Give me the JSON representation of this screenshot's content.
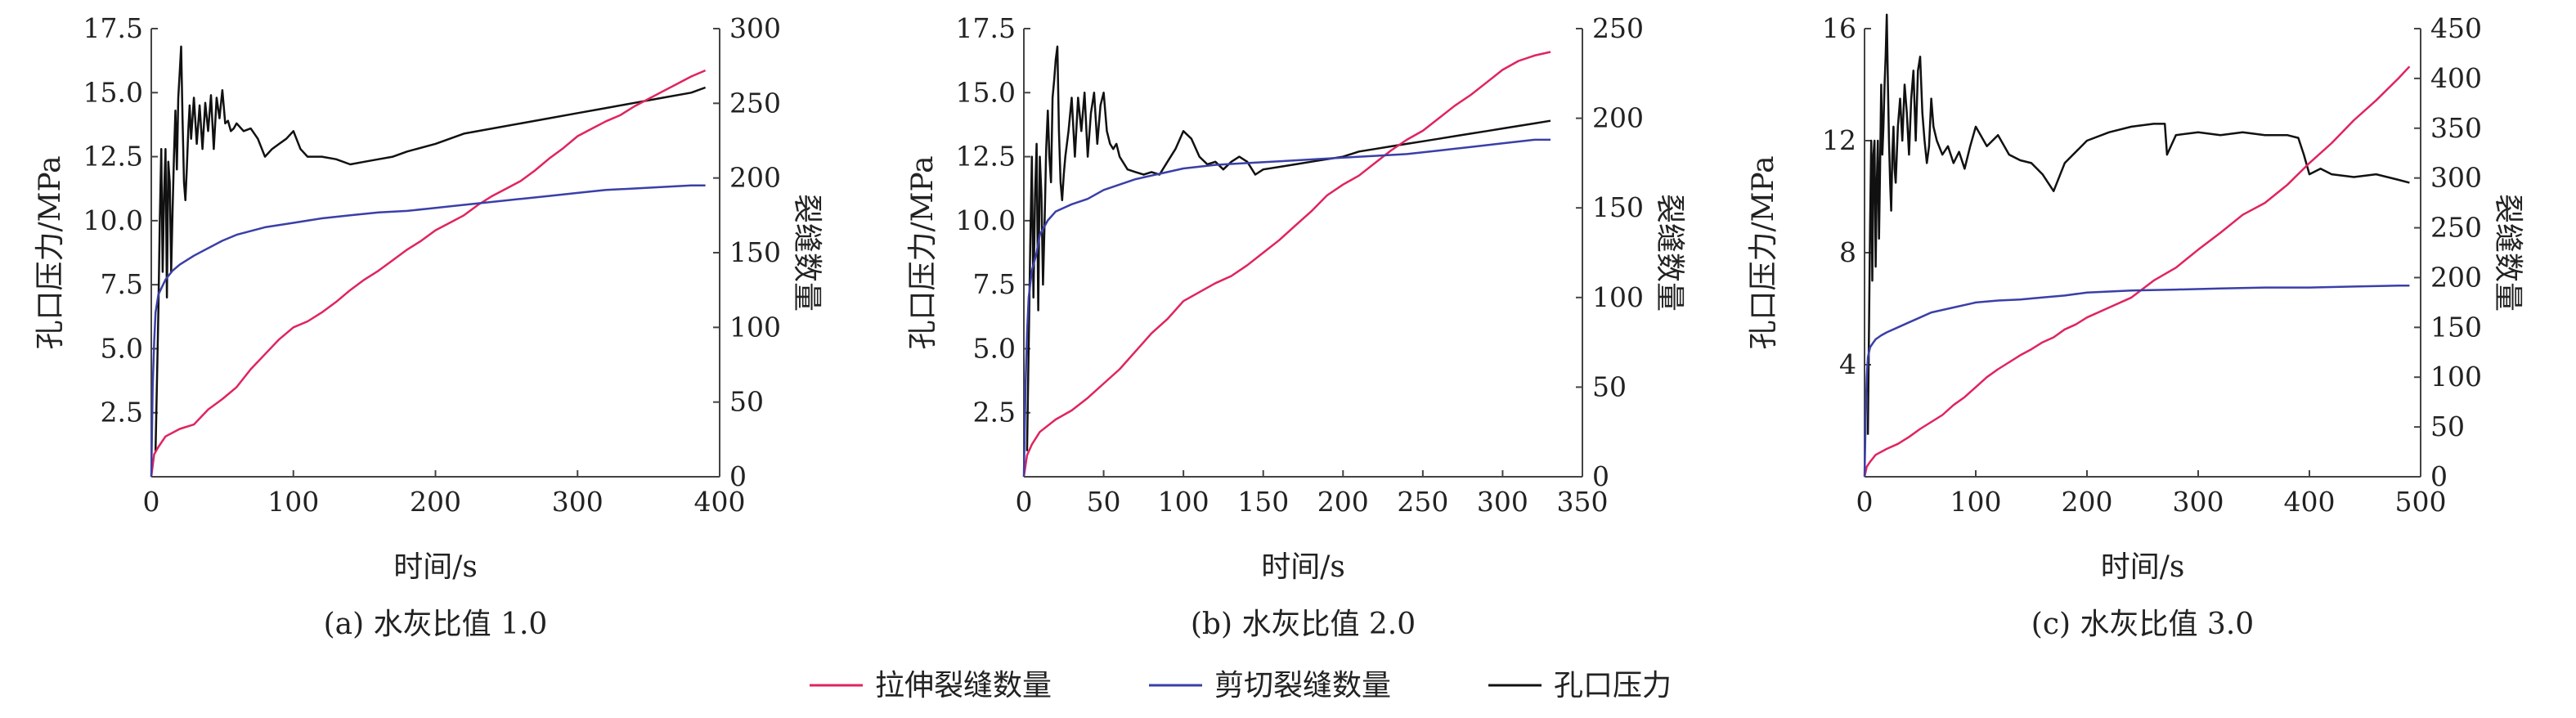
{
  "colors": {
    "tensile": "#e0245e",
    "shear": "#3a3fa8",
    "pressure": "#111111",
    "axis": "#444444"
  },
  "legend": {
    "tensile": "拉伸裂缝数量",
    "shear": "剪切裂缝数量",
    "pressure": "孔口压力"
  },
  "chart_data": [
    {
      "type": "line",
      "caption": "(a) 水灰比值 1.0",
      "xlabel": "时间/s",
      "ylabel": "孔口压力/MPa",
      "y2label": "裂缝数量",
      "xlim": [
        0,
        400
      ],
      "ylim": [
        0,
        17.5
      ],
      "y2lim": [
        0,
        300
      ],
      "xticks": [
        0,
        100,
        200,
        300,
        400
      ],
      "yticks": [
        2.5,
        5.0,
        7.5,
        10.0,
        12.5,
        15.0,
        17.5
      ],
      "y2ticks": [
        0,
        50,
        100,
        150,
        200,
        250,
        300
      ],
      "series": [
        {
          "name": "孔口压力",
          "axis": "left",
          "x": [
            3,
            5,
            6,
            7,
            8,
            9,
            10,
            11,
            12,
            13,
            14,
            15,
            16,
            17,
            18,
            19,
            20,
            21,
            22,
            23,
            24,
            25,
            26,
            27,
            28,
            30,
            32,
            34,
            36,
            38,
            40,
            42,
            44,
            46,
            48,
            50,
            52,
            54,
            56,
            58,
            60,
            65,
            70,
            75,
            80,
            85,
            90,
            95,
            100,
            105,
            110,
            120,
            130,
            140,
            150,
            160,
            170,
            180,
            200,
            220,
            240,
            260,
            280,
            300,
            320,
            340,
            360,
            380,
            390
          ],
          "y": [
            1.0,
            6.5,
            10.0,
            12.8,
            8.0,
            11.0,
            12.8,
            7.0,
            12.3,
            11.5,
            8.0,
            10.5,
            12.6,
            14.3,
            12.0,
            14.8,
            15.8,
            16.8,
            14.0,
            11.5,
            10.8,
            12.0,
            13.5,
            14.5,
            13.2,
            14.8,
            13.0,
            14.5,
            12.8,
            14.6,
            13.5,
            14.9,
            12.8,
            14.8,
            14.0,
            15.1,
            13.8,
            13.9,
            13.5,
            13.6,
            13.8,
            13.5,
            13.6,
            13.2,
            12.5,
            12.8,
            13.0,
            13.2,
            13.5,
            12.8,
            12.5,
            12.5,
            12.4,
            12.2,
            12.3,
            12.4,
            12.5,
            12.7,
            13.0,
            13.4,
            13.6,
            13.8,
            14.0,
            14.2,
            14.4,
            14.6,
            14.8,
            15.0,
            15.2
          ]
        },
        {
          "name": "拉伸裂缝数量",
          "axis": "right",
          "x": [
            0,
            2,
            5,
            10,
            20,
            30,
            40,
            50,
            60,
            70,
            80,
            90,
            100,
            110,
            120,
            130,
            140,
            150,
            160,
            170,
            180,
            190,
            200,
            210,
            220,
            230,
            240,
            250,
            260,
            270,
            280,
            290,
            300,
            310,
            320,
            330,
            340,
            350,
            360,
            370,
            380,
            390
          ],
          "y": [
            0,
            15,
            20,
            27,
            32,
            35,
            45,
            52,
            60,
            72,
            82,
            92,
            100,
            104,
            110,
            117,
            125,
            132,
            138,
            145,
            152,
            158,
            165,
            170,
            175,
            182,
            188,
            193,
            198,
            205,
            213,
            220,
            228,
            233,
            238,
            242,
            248,
            253,
            258,
            263,
            268,
            272
          ]
        },
        {
          "name": "剪切裂缝数量",
          "axis": "right",
          "x": [
            0,
            1,
            2,
            3,
            5,
            8,
            10,
            15,
            20,
            30,
            40,
            50,
            60,
            80,
            100,
            120,
            140,
            160,
            180,
            200,
            220,
            240,
            260,
            280,
            300,
            320,
            340,
            360,
            380,
            390
          ],
          "y": [
            0,
            60,
            90,
            110,
            122,
            128,
            132,
            138,
            142,
            148,
            153,
            158,
            162,
            167,
            170,
            173,
            175,
            177,
            178,
            180,
            182,
            184,
            186,
            188,
            190,
            192,
            193,
            194,
            195,
            195
          ]
        }
      ]
    },
    {
      "type": "line",
      "caption": "(b) 水灰比值 2.0",
      "xlabel": "时间/s",
      "ylabel": "孔口压力/MPa",
      "y2label": "裂缝数量",
      "xlim": [
        0,
        350
      ],
      "ylim": [
        0,
        17.5
      ],
      "y2lim": [
        0,
        250
      ],
      "xticks": [
        0,
        50,
        100,
        150,
        200,
        250,
        300,
        350
      ],
      "yticks": [
        2.5,
        5.0,
        7.5,
        10.0,
        12.5,
        15.0,
        17.5
      ],
      "y2ticks": [
        0,
        50,
        100,
        150,
        200,
        250
      ],
      "series": [
        {
          "name": "孔口压力",
          "axis": "left",
          "x": [
            2,
            4,
            5,
            6,
            7,
            8,
            9,
            10,
            11,
            12,
            13,
            14,
            15,
            16,
            17,
            18,
            19,
            20,
            21,
            22,
            23,
            24,
            25,
            26,
            28,
            30,
            32,
            34,
            36,
            38,
            40,
            42,
            44,
            46,
            48,
            50,
            52,
            54,
            56,
            58,
            60,
            65,
            70,
            75,
            80,
            85,
            90,
            95,
            100,
            105,
            110,
            115,
            120,
            125,
            130,
            135,
            140,
            145,
            150,
            160,
            170,
            180,
            190,
            200,
            210,
            220,
            230,
            240,
            250,
            260,
            270,
            280,
            290,
            300,
            310,
            320,
            330
          ],
          "y": [
            1.0,
            9.0,
            12.5,
            7.0,
            11.0,
            13.0,
            6.5,
            12.5,
            11.0,
            7.5,
            10.0,
            12.8,
            14.3,
            12.5,
            11.5,
            14.8,
            15.5,
            16.3,
            16.8,
            13.5,
            11.5,
            10.8,
            11.8,
            12.5,
            13.5,
            14.8,
            12.5,
            14.8,
            13.5,
            15.0,
            12.5,
            14.2,
            15.0,
            13.0,
            14.5,
            15.0,
            13.5,
            13.0,
            12.8,
            13.0,
            12.5,
            12.0,
            11.9,
            11.8,
            11.9,
            11.8,
            12.3,
            12.8,
            13.5,
            13.2,
            12.5,
            12.2,
            12.3,
            12.0,
            12.3,
            12.5,
            12.3,
            11.8,
            12.0,
            12.1,
            12.2,
            12.3,
            12.4,
            12.5,
            12.7,
            12.8,
            12.9,
            13.0,
            13.1,
            13.2,
            13.3,
            13.4,
            13.5,
            13.6,
            13.7,
            13.8,
            13.9
          ]
        },
        {
          "name": "拉伸裂缝数量",
          "axis": "right",
          "x": [
            0,
            2,
            5,
            10,
            20,
            30,
            40,
            50,
            60,
            70,
            80,
            90,
            100,
            110,
            120,
            130,
            140,
            150,
            160,
            170,
            180,
            190,
            200,
            210,
            220,
            230,
            240,
            250,
            260,
            270,
            280,
            290,
            300,
            310,
            320,
            330
          ],
          "y": [
            0,
            12,
            18,
            25,
            32,
            37,
            44,
            52,
            60,
            70,
            80,
            88,
            98,
            103,
            108,
            112,
            118,
            125,
            132,
            140,
            148,
            157,
            163,
            168,
            175,
            182,
            188,
            193,
            200,
            207,
            213,
            220,
            227,
            232,
            235,
            237
          ]
        },
        {
          "name": "剪切裂缝数量",
          "axis": "right",
          "x": [
            0,
            1,
            2,
            3,
            5,
            8,
            10,
            15,
            20,
            30,
            40,
            50,
            60,
            70,
            80,
            90,
            100,
            120,
            140,
            160,
            180,
            200,
            220,
            240,
            260,
            280,
            300,
            320,
            330
          ],
          "y": [
            0,
            50,
            80,
            100,
            115,
            125,
            135,
            143,
            148,
            152,
            155,
            160,
            163,
            166,
            168,
            170,
            172,
            174,
            175,
            176,
            177,
            178,
            179,
            180,
            182,
            184,
            186,
            188,
            188
          ]
        }
      ]
    },
    {
      "type": "line",
      "caption": "(c) 水灰比值 3.0",
      "xlabel": "时间/s",
      "ylabel": "孔口压力/MPa",
      "y2label": "裂缝数量",
      "xlim": [
        0,
        500
      ],
      "ylim": [
        0,
        16
      ],
      "y2lim": [
        0,
        450
      ],
      "xticks": [
        0,
        100,
        200,
        300,
        400,
        500
      ],
      "yticks": [
        4,
        8,
        12,
        16
      ],
      "y2ticks": [
        0,
        50,
        100,
        150,
        200,
        250,
        300,
        350,
        400,
        450
      ],
      "series": [
        {
          "name": "孔口压力",
          "axis": "left",
          "x": [
            3,
            5,
            6,
            7,
            8,
            9,
            10,
            11,
            12,
            13,
            14,
            15,
            16,
            17,
            18,
            19,
            20,
            21,
            22,
            23,
            24,
            25,
            26,
            27,
            28,
            30,
            32,
            34,
            36,
            38,
            40,
            42,
            44,
            46,
            48,
            50,
            52,
            54,
            56,
            58,
            60,
            62,
            65,
            70,
            75,
            80,
            85,
            90,
            95,
            100,
            110,
            120,
            130,
            140,
            150,
            160,
            170,
            180,
            200,
            220,
            240,
            260,
            270,
            272,
            280,
            300,
            320,
            340,
            360,
            380,
            390,
            395,
            400,
            410,
            420,
            440,
            460,
            480,
            490
          ],
          "y": [
            1.5,
            9.0,
            12.0,
            7.0,
            11.5,
            12.0,
            7.5,
            10.5,
            12.0,
            8.5,
            11.0,
            14.0,
            11.5,
            12.5,
            14.0,
            15.0,
            16.5,
            14.0,
            12.0,
            10.5,
            9.5,
            11.5,
            12.5,
            11.0,
            10.5,
            12.5,
            13.5,
            12.0,
            14.0,
            13.0,
            11.5,
            13.5,
            14.5,
            12.0,
            14.5,
            15.0,
            13.0,
            12.0,
            11.2,
            11.8,
            13.5,
            12.5,
            12.0,
            11.5,
            11.8,
            11.2,
            11.6,
            11.0,
            11.8,
            12.5,
            11.8,
            12.2,
            11.5,
            11.3,
            11.2,
            10.8,
            10.2,
            11.2,
            12.0,
            12.3,
            12.5,
            12.6,
            12.6,
            11.5,
            12.2,
            12.3,
            12.2,
            12.3,
            12.2,
            12.2,
            12.1,
            11.5,
            10.8,
            11.0,
            10.8,
            10.7,
            10.8,
            10.6,
            10.5
          ]
        },
        {
          "name": "拉伸裂缝数量",
          "axis": "right",
          "x": [
            0,
            2,
            5,
            10,
            20,
            30,
            40,
            50,
            60,
            70,
            80,
            90,
            100,
            110,
            120,
            130,
            140,
            150,
            160,
            170,
            180,
            190,
            200,
            220,
            240,
            260,
            280,
            300,
            320,
            340,
            360,
            380,
            400,
            420,
            440,
            460,
            480,
            490
          ],
          "y": [
            0,
            10,
            15,
            22,
            28,
            33,
            40,
            48,
            55,
            62,
            72,
            80,
            90,
            100,
            108,
            115,
            122,
            128,
            135,
            140,
            148,
            153,
            160,
            170,
            180,
            197,
            210,
            228,
            245,
            263,
            275,
            293,
            315,
            335,
            358,
            378,
            400,
            412
          ]
        },
        {
          "name": "剪切裂缝数量",
          "axis": "right",
          "x": [
            0,
            1,
            2,
            3,
            5,
            8,
            10,
            15,
            20,
            30,
            40,
            50,
            60,
            80,
            100,
            120,
            140,
            160,
            180,
            200,
            240,
            280,
            320,
            360,
            400,
            440,
            480,
            490
          ],
          "y": [
            0,
            60,
            100,
            120,
            130,
            135,
            138,
            142,
            145,
            150,
            155,
            160,
            165,
            170,
            175,
            177,
            178,
            180,
            182,
            185,
            187,
            188,
            189,
            190,
            190,
            191,
            192,
            192
          ]
        }
      ]
    }
  ]
}
